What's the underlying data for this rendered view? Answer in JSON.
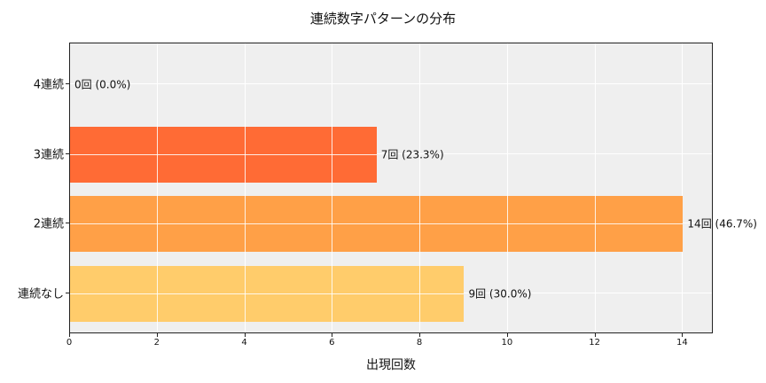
{
  "chart_data": {
    "type": "bar",
    "orientation": "horizontal",
    "title": "連続数字パターンの分布",
    "xlabel": "出現回数",
    "ylabel": "",
    "categories": [
      "4連続",
      "3連続",
      "2連続",
      "連続なし"
    ],
    "values": [
      0,
      7,
      14,
      9
    ],
    "percentages": [
      0.0,
      23.3,
      46.7,
      30.0
    ],
    "data_labels": [
      "0回 (0.0%)",
      "7回 (23.3%)",
      "14回 (46.7%)",
      "9回 (30.0%)"
    ],
    "colors": [
      "#ff5722",
      "#ff6b35",
      "#ffa047",
      "#ffcc6b"
    ],
    "xlim": [
      0,
      14.7
    ],
    "xticks": [
      "0",
      "2",
      "4",
      "6",
      "8",
      "10",
      "12",
      "14"
    ],
    "grid": true,
    "background": "#efefef"
  }
}
